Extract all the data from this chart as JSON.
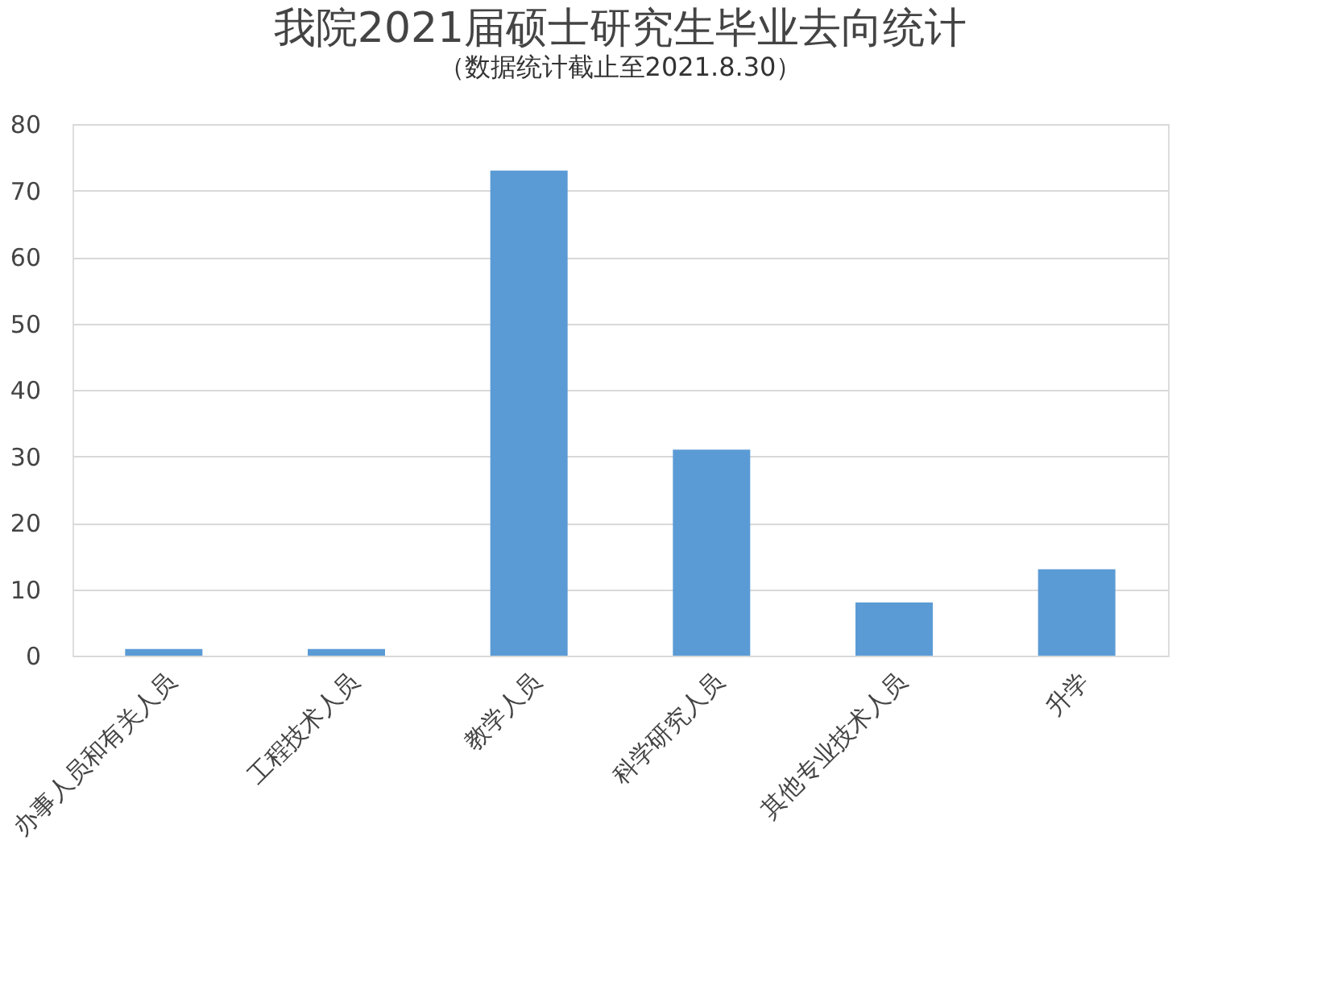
{
  "chart_data": {
    "type": "bar",
    "title": "我院2021届硕士研究生毕业去向统计",
    "subtitle": "（数据统计截止至2021.8.30）",
    "categories": [
      "办事人员和有关人员",
      "工程技术人员",
      "教学人员",
      "科学研究人员",
      "其他专业技术人员",
      "升学"
    ],
    "values": [
      1,
      1,
      73,
      31,
      8,
      13
    ],
    "color": "#5b9bd5",
    "ylim": [
      0,
      80
    ],
    "yticks": [
      0,
      10,
      20,
      30,
      40,
      50,
      60,
      70,
      80
    ],
    "grid": "y"
  }
}
